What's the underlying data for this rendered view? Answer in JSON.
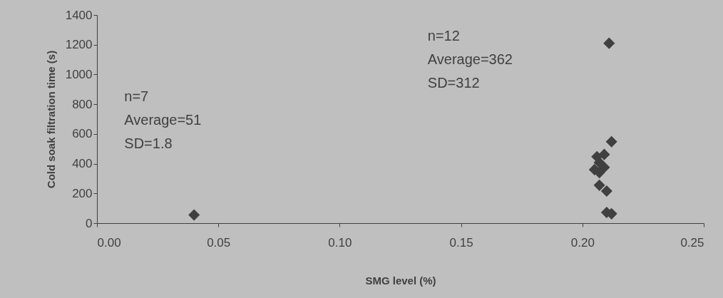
{
  "chart_data": {
    "type": "scatter",
    "xlabel": "SMG level (%)",
    "ylabel": "Cold soak filtration time (s)",
    "x": [
      0.04,
      0.212,
      0.209,
      0.206,
      0.207,
      0.205,
      0.209,
      0.207,
      0.207,
      0.21,
      0.21,
      0.212,
      0.211
    ],
    "series": [
      {
        "color": "#404040",
        "values": [
          55,
          548,
          462,
          447,
          408,
          360,
          375,
          340,
          255,
          216,
          72,
          63,
          1210
        ]
      }
    ],
    "marker": "diamond",
    "grid": false,
    "xlim": [
      0,
      0.25
    ],
    "xticks": [
      {
        "value": 0,
        "label": "0.00"
      },
      {
        "value": 0.05,
        "label": "0.05"
      },
      {
        "value": 0.1,
        "label": "0.10"
      },
      {
        "value": 0.15,
        "label": "0.15"
      },
      {
        "value": 0.2,
        "label": "0.20"
      },
      {
        "value": 0.25,
        "label": "0.25"
      }
    ],
    "ylim": [
      0,
      1400
    ],
    "yticks": [
      0,
      200,
      400,
      600,
      800,
      1000,
      1200,
      1400
    ],
    "annotations": [
      "n=7\nAverage=51\nSD=1.8",
      "n=12\nAverage=362\nSD=312"
    ]
  }
}
